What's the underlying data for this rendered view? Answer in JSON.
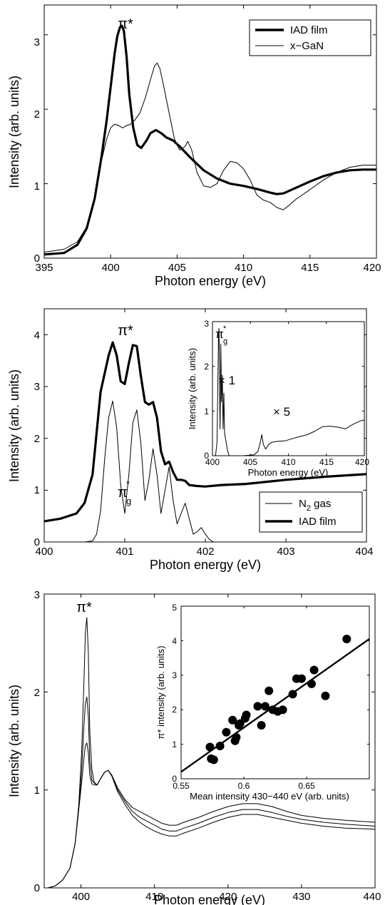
{
  "chart_data": [
    {
      "id": "panel1",
      "type": "line",
      "xlabel": "Photon energy (eV)",
      "ylabel": "Intensity (arb. units)",
      "xlim": [
        395,
        420
      ],
      "ylim": [
        0,
        3.4
      ],
      "xticks": [
        "395",
        "400",
        "405",
        "410",
        "415",
        "420"
      ],
      "yticks": [
        "0",
        "1",
        "2",
        "3"
      ],
      "legend_position": "top-right",
      "annotations": [
        {
          "label": "π*"
        }
      ],
      "series": [
        {
          "name": "IAD film",
          "style": "thick",
          "x": [
            395.0,
            396.5,
            397.5,
            398.2,
            398.8,
            399.3,
            399.7,
            400.0,
            400.3,
            400.5,
            400.7,
            400.85,
            401.0,
            401.2,
            401.4,
            401.7,
            402.0,
            402.3,
            402.7,
            403.0,
            403.4,
            403.8,
            404.2,
            404.7,
            405.2,
            406.0,
            407.0,
            408.0,
            409.0,
            410.0,
            411.0,
            412.0,
            412.5,
            413.0,
            414.0,
            415.0,
            416.0,
            417.0,
            418.0,
            419.0,
            420.0
          ],
          "values": [
            0.05,
            0.07,
            0.18,
            0.4,
            0.8,
            1.35,
            1.85,
            2.3,
            2.75,
            2.98,
            3.1,
            3.12,
            3.05,
            2.7,
            2.2,
            1.75,
            1.52,
            1.48,
            1.58,
            1.68,
            1.72,
            1.68,
            1.62,
            1.58,
            1.5,
            1.35,
            1.18,
            1.07,
            1.0,
            0.97,
            0.93,
            0.88,
            0.86,
            0.87,
            0.95,
            1.03,
            1.1,
            1.15,
            1.18,
            1.19,
            1.19
          ]
        },
        {
          "name": "x−GaN",
          "style": "thin",
          "x": [
            395.0,
            396.5,
            397.5,
            398.2,
            398.8,
            399.3,
            399.7,
            400.0,
            400.3,
            400.6,
            400.9,
            401.2,
            401.5,
            401.8,
            402.2,
            402.6,
            403.0,
            403.3,
            403.5,
            403.7,
            404.0,
            404.4,
            404.8,
            405.2,
            405.6,
            405.8,
            406.1,
            406.5,
            407.0,
            407.5,
            408.0,
            408.5,
            409.0,
            409.5,
            410.0,
            410.5,
            411.0,
            411.5,
            412.0,
            412.5,
            413.0,
            413.5,
            414.0,
            415.0,
            416.0,
            417.0,
            418.0,
            419.0,
            420.0
          ],
          "values": [
            0.08,
            0.12,
            0.22,
            0.42,
            0.8,
            1.3,
            1.6,
            1.75,
            1.8,
            1.78,
            1.75,
            1.78,
            1.8,
            1.85,
            1.95,
            2.15,
            2.4,
            2.58,
            2.62,
            2.55,
            2.3,
            1.95,
            1.6,
            1.45,
            1.5,
            1.57,
            1.45,
            1.15,
            0.97,
            0.95,
            1.0,
            1.18,
            1.3,
            1.28,
            1.2,
            1.05,
            0.85,
            0.78,
            0.75,
            0.68,
            0.65,
            0.72,
            0.8,
            0.92,
            1.05,
            1.15,
            1.22,
            1.25,
            1.25
          ]
        }
      ]
    },
    {
      "id": "panel2",
      "type": "line",
      "xlabel": "Photon energy (eV)",
      "ylabel": "Intensity (arb. units)",
      "xlim": [
        400,
        404
      ],
      "ylim": [
        0,
        4.5
      ],
      "xticks": [
        "400",
        "401",
        "402",
        "403",
        "404"
      ],
      "yticks": [
        "0",
        "1",
        "2",
        "3",
        "4"
      ],
      "legend_position": "bottom-right",
      "annotations": [
        {
          "label": "π*"
        },
        {
          "label": "π",
          "sub": "g",
          "sup": "*"
        }
      ],
      "series": [
        {
          "name": "N",
          "name_sub": "2",
          "name_suffix": " gas",
          "style": "thin",
          "x": [
            400.0,
            400.5,
            400.6,
            400.65,
            400.7,
            400.75,
            400.8,
            400.85,
            400.9,
            400.95,
            401.0,
            401.05,
            401.1,
            401.15,
            401.2,
            401.25,
            401.3,
            401.35,
            401.4,
            401.45,
            401.5,
            401.55,
            401.6,
            401.65,
            401.7,
            401.75,
            401.8,
            401.85,
            401.9,
            401.95,
            402.0,
            402.05,
            402.1,
            404.0
          ],
          "values": [
            0.0,
            0.0,
            0.02,
            0.15,
            0.6,
            1.6,
            2.4,
            2.72,
            2.2,
            1.1,
            0.55,
            1.3,
            2.3,
            2.55,
            1.9,
            0.8,
            1.2,
            1.8,
            1.3,
            0.55,
            1.0,
            1.45,
            0.8,
            0.35,
            0.55,
            0.75,
            0.45,
            0.15,
            0.2,
            0.28,
            0.15,
            0.05,
            0.0,
            0.0
          ]
        },
        {
          "name": "IAD film",
          "style": "thick",
          "x": [
            400.0,
            400.2,
            400.4,
            400.5,
            400.6,
            400.7,
            400.8,
            400.85,
            400.9,
            400.95,
            401.0,
            401.05,
            401.1,
            401.15,
            401.2,
            401.25,
            401.3,
            401.35,
            401.4,
            401.45,
            401.5,
            401.55,
            401.6,
            401.65,
            401.7,
            401.75,
            401.8,
            401.9,
            402.0,
            402.2,
            402.5,
            403.0,
            403.5,
            404.0
          ],
          "values": [
            0.4,
            0.45,
            0.55,
            0.75,
            1.3,
            2.9,
            3.6,
            3.85,
            3.6,
            3.1,
            3.05,
            3.45,
            3.8,
            3.78,
            3.2,
            2.7,
            2.65,
            2.7,
            2.4,
            1.75,
            1.5,
            1.55,
            1.35,
            1.2,
            1.2,
            1.18,
            1.1,
            1.08,
            1.07,
            1.1,
            1.12,
            1.2,
            1.26,
            1.31
          ]
        }
      ],
      "inset": {
        "xlabel": "Photon energy (eV)",
        "ylabel": "Intensity (arb. units)",
        "xlim": [
          400,
          420
        ],
        "ylim": [
          0,
          3
        ],
        "xticks": [
          "400",
          "405",
          "410",
          "415",
          "420"
        ],
        "yticks": [
          "0",
          "1",
          "2",
          "3"
        ],
        "annotations": [
          {
            "label": "π",
            "sub": "g",
            "sup": "*"
          },
          {
            "label": "× 1"
          },
          {
            "label": "× 5"
          }
        ],
        "series": [
          {
            "name": "",
            "style": "thin",
            "x": [
              400.0,
              400.4,
              400.6,
              400.7,
              400.8,
              400.85,
              400.9,
              401.0,
              401.05,
              401.1,
              401.2,
              401.3,
              401.4,
              401.5,
              401.6,
              401.8,
              402.0,
              402.2,
              404.0,
              405.5,
              406.0,
              406.3,
              406.5,
              406.7,
              407.0,
              407.4,
              407.8,
              408.5,
              409.5,
              410.5,
              411.5,
              412.5,
              413.5,
              414.5,
              415.5,
              416.5,
              417.5,
              418.5,
              419.5,
              420.0
            ],
            "values": [
              0.0,
              0.0,
              0.3,
              1.5,
              2.7,
              2.85,
              2.3,
              0.6,
              1.3,
              2.5,
              1.2,
              1.8,
              0.6,
              1.4,
              0.5,
              0.3,
              0.1,
              0.0,
              0.0,
              0.02,
              0.1,
              0.3,
              0.47,
              0.25,
              0.15,
              0.25,
              0.3,
              0.32,
              0.33,
              0.38,
              0.43,
              0.47,
              0.55,
              0.65,
              0.66,
              0.64,
              0.6,
              0.7,
              0.78,
              0.8
            ]
          }
        ]
      }
    },
    {
      "id": "panel3",
      "type": "line",
      "xlabel": "Photon energy (eV)",
      "ylabel": "Intensity (arb. units)",
      "xlim": [
        395,
        440
      ],
      "ylim": [
        0,
        3
      ],
      "xticks": [
        "400",
        "410",
        "420",
        "430",
        "440"
      ],
      "yticks": [
        "0",
        "1",
        "2",
        "3"
      ],
      "annotations": [
        {
          "label": "π*"
        }
      ],
      "series": [
        {
          "name": "",
          "style": "thin",
          "x": [
            395.5,
            396.5,
            397.5,
            398.5,
            399.2,
            399.7,
            400.1,
            400.4,
            400.6,
            400.8,
            401.0,
            401.2,
            401.5,
            401.8,
            402.2,
            402.7,
            403.2,
            403.7,
            404.2,
            405.0,
            406.0,
            407.0,
            408.0,
            409.0,
            410.0,
            411.0,
            412.0,
            413.0,
            414.0,
            416.0,
            418.0,
            420.0,
            422.0,
            424.0,
            426.0,
            428.0,
            430.0,
            433.0,
            436.0,
            440.0
          ],
          "values": [
            0.0,
            0.02,
            0.08,
            0.2,
            0.45,
            0.85,
            1.4,
            2.1,
            2.6,
            2.76,
            2.4,
            1.6,
            1.2,
            1.08,
            1.05,
            1.12,
            1.18,
            1.2,
            1.15,
            1.02,
            0.9,
            0.82,
            0.78,
            0.74,
            0.7,
            0.66,
            0.64,
            0.64,
            0.67,
            0.72,
            0.78,
            0.83,
            0.86,
            0.86,
            0.83,
            0.78,
            0.74,
            0.71,
            0.69,
            0.67
          ]
        },
        {
          "name": "",
          "style": "thin",
          "x": [
            395.5,
            396.5,
            397.5,
            398.5,
            399.2,
            399.7,
            400.1,
            400.4,
            400.6,
            400.8,
            401.0,
            401.2,
            401.5,
            401.8,
            402.2,
            402.7,
            403.2,
            403.7,
            404.2,
            405.0,
            406.0,
            407.0,
            408.0,
            409.0,
            410.0,
            411.0,
            412.0,
            413.0,
            414.0,
            416.0,
            418.0,
            420.0,
            422.0,
            424.0,
            426.0,
            428.0,
            430.0,
            433.0,
            436.0,
            440.0
          ],
          "values": [
            0.0,
            0.02,
            0.08,
            0.2,
            0.45,
            0.82,
            1.2,
            1.65,
            1.88,
            1.95,
            1.75,
            1.3,
            1.1,
            1.07,
            1.05,
            1.12,
            1.18,
            1.2,
            1.15,
            1.0,
            0.88,
            0.78,
            0.72,
            0.68,
            0.64,
            0.6,
            0.58,
            0.58,
            0.61,
            0.66,
            0.72,
            0.77,
            0.8,
            0.8,
            0.77,
            0.73,
            0.7,
            0.67,
            0.65,
            0.63
          ]
        },
        {
          "name": "",
          "style": "thin",
          "x": [
            395.5,
            396.5,
            397.5,
            398.5,
            399.2,
            399.7,
            400.1,
            400.4,
            400.6,
            400.8,
            401.0,
            401.2,
            401.5,
            401.8,
            402.2,
            402.7,
            403.2,
            403.7,
            404.2,
            405.0,
            406.0,
            407.0,
            408.0,
            409.0,
            410.0,
            411.0,
            412.0,
            413.0,
            414.0,
            416.0,
            418.0,
            420.0,
            422.0,
            424.0,
            426.0,
            428.0,
            430.0,
            433.0,
            436.0,
            440.0
          ],
          "values": [
            0.0,
            0.02,
            0.08,
            0.2,
            0.45,
            0.8,
            1.08,
            1.32,
            1.45,
            1.48,
            1.38,
            1.15,
            1.06,
            1.05,
            1.05,
            1.12,
            1.18,
            1.2,
            1.14,
            0.98,
            0.85,
            0.74,
            0.67,
            0.62,
            0.58,
            0.55,
            0.53,
            0.53,
            0.56,
            0.61,
            0.67,
            0.72,
            0.75,
            0.75,
            0.72,
            0.69,
            0.66,
            0.63,
            0.61,
            0.6
          ]
        }
      ],
      "inset": {
        "type": "scatter",
        "xlabel": "Mean intensity 430−440 eV (arb. units)",
        "ylabel": "π* intensity (arb. units)",
        "xlim": [
          0.55,
          0.7
        ],
        "ylim": [
          0,
          5
        ],
        "xticks": [
          "0.55",
          "0.6",
          "0.65"
        ],
        "yticks": [
          "0",
          "1",
          "2",
          "3",
          "4",
          "5"
        ],
        "points": {
          "x": [
            0.573,
            0.574,
            0.576,
            0.581,
            0.586,
            0.591,
            0.593,
            0.594,
            0.596,
            0.597,
            0.601,
            0.602,
            0.611,
            0.614,
            0.617,
            0.62,
            0.623,
            0.627,
            0.631,
            0.639,
            0.642,
            0.646,
            0.654,
            0.656,
            0.665,
            0.682
          ],
          "y": [
            0.92,
            0.58,
            0.55,
            0.95,
            1.35,
            1.7,
            1.1,
            1.2,
            1.55,
            1.6,
            1.75,
            1.85,
            2.1,
            1.55,
            2.1,
            2.55,
            2.0,
            1.95,
            2.0,
            2.45,
            2.9,
            2.9,
            2.75,
            3.15,
            2.4,
            4.05
          ]
        },
        "fit_line": {
          "x": [
            0.55,
            0.7
          ],
          "y": [
            0.2,
            4.05
          ]
        }
      }
    }
  ]
}
